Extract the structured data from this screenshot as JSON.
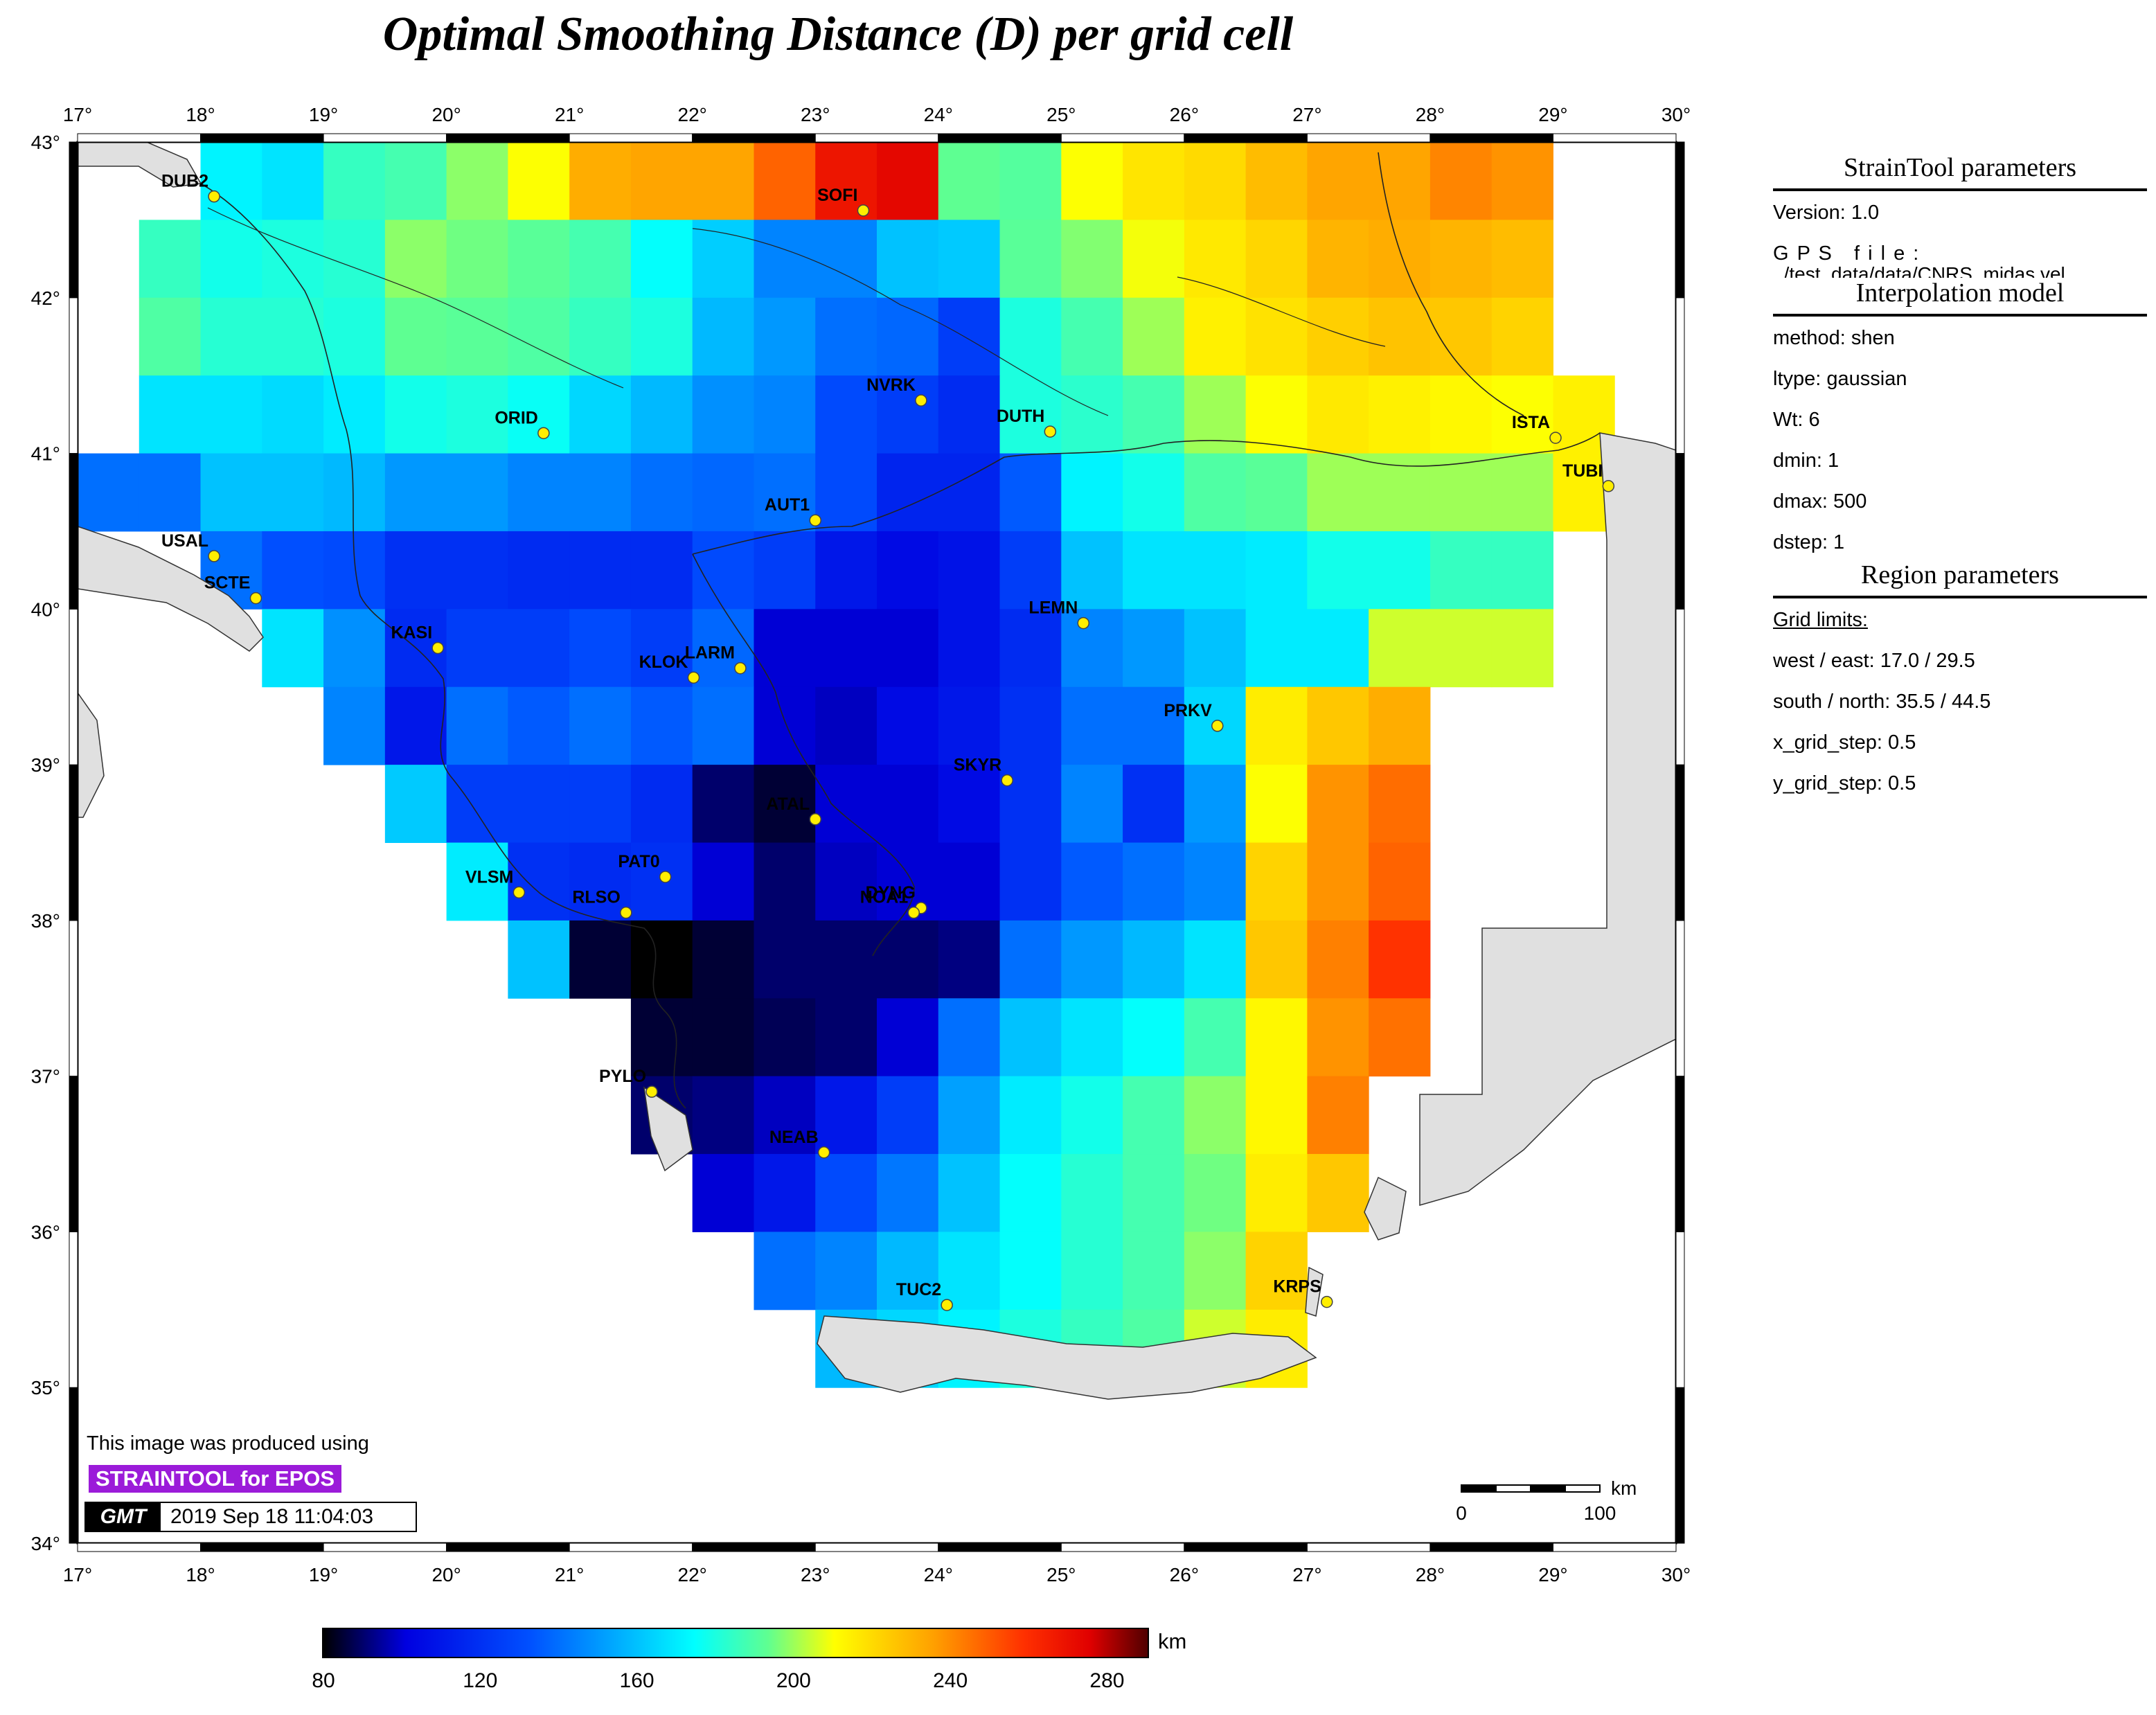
{
  "title": "Optimal Smoothing Distance (D) per grid cell",
  "map": {
    "lon_ticks": [
      "17°",
      "18°",
      "19°",
      "20°",
      "21°",
      "22°",
      "23°",
      "24°",
      "25°",
      "26°",
      "27°",
      "28°",
      "29°",
      "30°"
    ],
    "lat_ticks": [
      "43°",
      "42°",
      "41°",
      "40°",
      "39°",
      "38°",
      "37°",
      "36°",
      "35°",
      "34°"
    ],
    "stations": [
      {
        "name": "DUB2",
        "lon": 18.11,
        "lat": 42.65
      },
      {
        "name": "SOFI",
        "lon": 23.39,
        "lat": 42.56
      },
      {
        "name": "ORID",
        "lon": 20.79,
        "lat": 41.13
      },
      {
        "name": "NVRK",
        "lon": 23.86,
        "lat": 41.34
      },
      {
        "name": "DUTH",
        "lon": 24.91,
        "lat": 41.14
      },
      {
        "name": "ISTA",
        "lon": 29.02,
        "lat": 41.1
      },
      {
        "name": "TUBI",
        "lon": 29.45,
        "lat": 40.79
      },
      {
        "name": "USAL",
        "lon": 18.11,
        "lat": 40.34
      },
      {
        "name": "SCTE",
        "lon": 18.45,
        "lat": 40.07
      },
      {
        "name": "AUT1",
        "lon": 23.0,
        "lat": 40.57
      },
      {
        "name": "LEMN",
        "lon": 25.18,
        "lat": 39.91
      },
      {
        "name": "KASI",
        "lon": 19.93,
        "lat": 39.75
      },
      {
        "name": "KLOK",
        "lon": 22.01,
        "lat": 39.56
      },
      {
        "name": "LARM",
        "lon": 22.39,
        "lat": 39.62
      },
      {
        "name": "PRKV",
        "lon": 26.27,
        "lat": 39.25
      },
      {
        "name": "SKYR",
        "lon": 24.56,
        "lat": 38.9
      },
      {
        "name": "ATAL",
        "lon": 23.0,
        "lat": 38.65
      },
      {
        "name": "PAT0",
        "lon": 21.78,
        "lat": 38.28
      },
      {
        "name": "VLSM",
        "lon": 20.59,
        "lat": 38.18
      },
      {
        "name": "RLSO",
        "lon": 21.46,
        "lat": 38.05
      },
      {
        "name": "DYNG",
        "lon": 23.86,
        "lat": 38.08
      },
      {
        "name": "NOA1",
        "lon": 23.8,
        "lat": 38.05
      },
      {
        "name": "PYLO",
        "lon": 21.67,
        "lat": 36.9
      },
      {
        "name": "NEAB",
        "lon": 23.07,
        "lat": 36.51
      },
      {
        "name": "TUC2",
        "lon": 24.07,
        "lat": 35.53
      },
      {
        "name": "KRPS",
        "lon": 27.16,
        "lat": 35.55
      }
    ],
    "scale_bar": {
      "unit": "km",
      "start_label": "0",
      "end_label": "100"
    },
    "colors": {
      "land": "#e0e0e0",
      "station": "#ffee00"
    }
  },
  "grid_cells": {
    "lon_start": 17.0,
    "lat_start": 43.0,
    "step": 0.5,
    "unit": "km",
    "rows": [
      [
        null,
        null,
        172,
        168,
        185,
        188,
        198,
        210,
        232,
        234,
        234,
        248,
        268,
        273,
        193,
        191,
        210,
        217,
        220,
        228,
        234,
        234,
        241,
        238
      ],
      [
        null,
        185,
        178,
        180,
        182,
        198,
        195,
        192,
        188,
        175,
        163,
        145,
        145,
        160,
        162,
        192,
        197,
        209,
        216,
        221,
        230,
        232,
        230,
        228
      ],
      [
        null,
        190,
        182,
        182,
        180,
        193,
        192,
        190,
        185,
        180,
        158,
        150,
        140,
        138,
        125,
        180,
        188,
        200,
        214,
        218,
        223,
        226,
        225,
        222
      ],
      [
        null,
        168,
        168,
        166,
        170,
        178,
        180,
        176,
        165,
        158,
        148,
        145,
        130,
        125,
        118,
        180,
        183,
        188,
        200,
        210,
        216,
        214,
        212,
        210,
        214
      ],
      [
        140,
        140,
        160,
        160,
        158,
        150,
        150,
        145,
        145,
        140,
        138,
        140,
        130,
        115,
        115,
        135,
        172,
        178,
        190,
        192,
        200,
        200,
        200,
        200,
        214
      ],
      [
        null,
        null,
        140,
        132,
        130,
        120,
        120,
        118,
        118,
        118,
        130,
        125,
        110,
        105,
        108,
        125,
        160,
        168,
        168,
        170,
        178,
        178,
        185,
        185
      ],
      [
        null,
        null,
        null,
        168,
        148,
        118,
        125,
        125,
        130,
        125,
        138,
        100,
        100,
        100,
        108,
        118,
        145,
        150,
        160,
        170,
        170,
        205,
        205,
        205
      ],
      [
        null,
        null,
        null,
        null,
        145,
        110,
        140,
        135,
        140,
        135,
        140,
        100,
        98,
        105,
        110,
        120,
        140,
        140,
        165,
        215,
        225,
        232,
        null,
        null
      ],
      [
        null,
        null,
        null,
        null,
        null,
        162,
        125,
        125,
        125,
        118,
        90,
        85,
        100,
        100,
        105,
        120,
        145,
        120,
        150,
        210,
        238,
        246,
        null,
        null
      ],
      [
        null,
        null,
        null,
        null,
        null,
        null,
        170,
        120,
        118,
        120,
        100,
        90,
        98,
        100,
        100,
        120,
        135,
        140,
        145,
        222,
        238,
        248,
        null,
        null
      ],
      [
        null,
        null,
        null,
        null,
        null,
        null,
        null,
        160,
        85,
        80,
        85,
        90,
        90,
        90,
        92,
        140,
        150,
        158,
        168,
        225,
        242,
        258,
        null,
        null
      ],
      [
        null,
        null,
        null,
        null,
        null,
        null,
        null,
        null,
        null,
        85,
        85,
        88,
        90,
        100,
        140,
        160,
        168,
        175,
        188,
        212,
        238,
        245,
        null,
        null
      ],
      [
        null,
        null,
        null,
        null,
        null,
        null,
        null,
        null,
        null,
        90,
        92,
        98,
        110,
        125,
        152,
        170,
        178,
        188,
        198,
        212,
        242,
        null,
        null,
        null
      ],
      [
        null,
        null,
        null,
        null,
        null,
        null,
        null,
        null,
        null,
        null,
        100,
        110,
        130,
        142,
        160,
        175,
        182,
        188,
        195,
        215,
        225,
        null,
        null,
        null
      ],
      [
        null,
        null,
        null,
        null,
        null,
        null,
        null,
        null,
        null,
        null,
        null,
        140,
        145,
        158,
        168,
        175,
        182,
        188,
        198,
        222,
        null,
        null,
        null,
        null
      ],
      [
        null,
        null,
        null,
        null,
        null,
        null,
        null,
        null,
        null,
        null,
        null,
        null,
        158,
        165,
        172,
        180,
        185,
        190,
        205,
        215,
        null,
        null,
        null,
        null
      ]
    ]
  },
  "colorbar": {
    "unit": "km",
    "min": 80,
    "max": 290,
    "ticks": [
      "80",
      "120",
      "160",
      "200",
      "240",
      "280"
    ]
  },
  "params": {
    "straintool_title": "StrainTool parameters",
    "version": "Version: 1.0",
    "gps_file": "G P S   f i l e :",
    "gps_path": "../test_data/data/CNRS_midas.vel",
    "interp_title": "Interpolation model",
    "method": "method: shen",
    "ltype": "ltype: gaussian",
    "wt": "Wt: 6",
    "dmin": "dmin: 1",
    "dmax": "dmax: 500",
    "dstep": "dstep: 1",
    "region_title": "Region parameters",
    "grid_limits": "Grid limits:",
    "west_east": "west / east: 17.0 / 29.5",
    "south_north": "south / north: 35.5 / 44.5",
    "x_step": "x_grid_step: 0.5",
    "y_step": "y_grid_step: 0.5"
  },
  "credit": {
    "text": "This image was produced using",
    "badge": "STRAINTOOL for EPOS",
    "gmt_logo": "GMT",
    "timestamp": "2019 Sep 18 11:04:03"
  }
}
